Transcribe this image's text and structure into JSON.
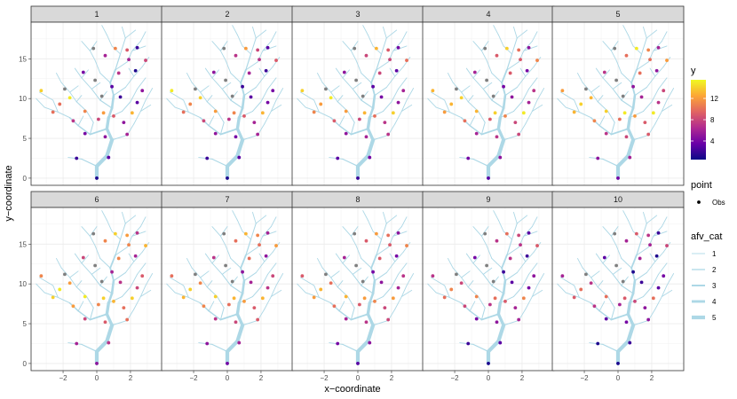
{
  "chart_data": {
    "type": "scatter",
    "description_note": "Faceted stream-network plot: 10 panels of the same branching river network with observation points colored by y.",
    "facets": [
      "1",
      "2",
      "3",
      "4",
      "5",
      "6",
      "7",
      "8",
      "9",
      "10"
    ],
    "xlabel": "x−coordinate",
    "ylabel": "y−coordinate",
    "xlim": [
      -3.9,
      3.9
    ],
    "ylim": [
      -0.9,
      19.6
    ],
    "x_ticks": [
      -2,
      0,
      2
    ],
    "x_tick_labels": [
      "−2",
      "0",
      "2"
    ],
    "y_ticks": [
      0,
      5,
      10,
      15
    ],
    "y_tick_labels": [
      "0",
      "5",
      "10",
      "15"
    ],
    "grid": true,
    "legend_position": "right",
    "color_legend": {
      "title": "y",
      "breaks": [
        4,
        8,
        12
      ],
      "break_labels": [
        "4",
        "8",
        "12"
      ],
      "range": [
        0.5,
        15.5
      ],
      "palette": [
        "#0d0887",
        "#6a00a8",
        "#b12a90",
        "#e16462",
        "#fca636",
        "#f0f921"
      ]
    },
    "point_legend": {
      "title": "point",
      "label": "Obs"
    },
    "line_legend": {
      "title": "afv_cat",
      "labels": [
        "1",
        "2",
        "3",
        "4",
        "5"
      ]
    },
    "network_color": "#add8e6",
    "na_point_color": "#7f7f7f",
    "points_xy": [
      [
        0,
        0
      ],
      [
        -1.2,
        2.5
      ],
      [
        0.7,
        2.6
      ],
      [
        -0.7,
        5.6
      ],
      [
        0.5,
        5.2
      ],
      [
        1.8,
        5.5
      ],
      [
        -1.4,
        7.2
      ],
      [
        0.1,
        7.4
      ],
      [
        1.0,
        7.8
      ],
      [
        -2.6,
        8.3
      ],
      [
        -0.7,
        8.4
      ],
      [
        0.4,
        8.2
      ],
      [
        2.1,
        8.2
      ],
      [
        -3.3,
        11.0
      ],
      [
        -1.6,
        10.1
      ],
      [
        0.3,
        10.3
      ],
      [
        1.4,
        10.2
      ],
      [
        2.7,
        11.0
      ],
      [
        -1.9,
        11.2
      ],
      [
        0.9,
        11.5
      ],
      [
        1.3,
        13.2
      ],
      [
        2.3,
        13.5
      ],
      [
        -0.8,
        13.3
      ],
      [
        0.5,
        15.4
      ],
      [
        1.8,
        16.1
      ],
      [
        1.1,
        16.3
      ],
      [
        2.4,
        16.4
      ],
      [
        -0.2,
        16.3
      ],
      [
        2.9,
        14.8
      ],
      [
        -2.2,
        9.3
      ],
      [
        2.4,
        9.5
      ],
      [
        1.9,
        14.9
      ],
      [
        -0.1,
        12.3
      ],
      [
        1.6,
        7.0
      ]
    ],
    "series": [
      {
        "name": "1",
        "values": [
          1,
          2,
          3,
          4,
          5,
          6,
          7,
          8,
          9,
          10,
          11,
          12,
          13,
          14,
          15,
          null,
          2,
          5,
          null,
          3,
          7,
          1,
          4,
          6,
          9,
          11,
          2,
          null,
          8,
          10,
          3,
          6,
          null,
          5
        ]
      },
      {
        "name": "2",
        "values": [
          1,
          2,
          3,
          5,
          4,
          6,
          8,
          7,
          9,
          10,
          12,
          11,
          13,
          15,
          14,
          null,
          3,
          4,
          null,
          2,
          6,
          2,
          5,
          7,
          8,
          12,
          3,
          null,
          9,
          11,
          4,
          7,
          null,
          6
        ]
      },
      {
        "name": "3",
        "values": [
          2,
          3,
          4,
          5,
          6,
          7,
          9,
          8,
          10,
          11,
          12,
          13,
          14,
          14,
          15,
          null,
          4,
          6,
          null,
          3,
          8,
          3,
          5,
          8,
          9,
          13,
          4,
          null,
          10,
          12,
          5,
          8,
          null,
          7
        ]
      },
      {
        "name": "4",
        "values": [
          3,
          4,
          5,
          6,
          7,
          8,
          10,
          9,
          11,
          12,
          13,
          14,
          15,
          13,
          14,
          null,
          5,
          7,
          null,
          4,
          9,
          4,
          6,
          9,
          10,
          14,
          5,
          null,
          11,
          13,
          6,
          9,
          null,
          8
        ]
      },
      {
        "name": "5",
        "values": [
          4,
          5,
          6,
          7,
          8,
          9,
          11,
          10,
          12,
          13,
          14,
          15,
          15,
          12,
          13,
          null,
          6,
          8,
          null,
          5,
          10,
          5,
          7,
          10,
          11,
          15,
          6,
          null,
          12,
          14,
          7,
          10,
          null,
          9
        ]
      },
      {
        "name": "6",
        "values": [
          5,
          6,
          7,
          8,
          9,
          10,
          12,
          11,
          13,
          14,
          15,
          14,
          14,
          11,
          12,
          null,
          7,
          9,
          null,
          6,
          11,
          6,
          8,
          11,
          12,
          14,
          7,
          null,
          13,
          15,
          8,
          11,
          null,
          10
        ]
      },
      {
        "name": "7",
        "values": [
          4,
          5,
          6,
          7,
          8,
          9,
          11,
          10,
          12,
          13,
          14,
          13,
          13,
          10,
          11,
          null,
          6,
          8,
          null,
          5,
          10,
          5,
          7,
          10,
          11,
          13,
          6,
          null,
          12,
          14,
          7,
          10,
          null,
          9
        ]
      },
      {
        "name": "8",
        "values": [
          3,
          4,
          5,
          6,
          7,
          8,
          10,
          9,
          11,
          12,
          13,
          12,
          12,
          9,
          10,
          null,
          5,
          7,
          null,
          4,
          9,
          4,
          6,
          9,
          10,
          12,
          5,
          null,
          11,
          13,
          6,
          9,
          null,
          8
        ]
      },
      {
        "name": "9",
        "values": [
          1,
          2,
          3,
          4,
          5,
          6,
          8,
          7,
          9,
          10,
          11,
          10,
          11,
          7,
          8,
          null,
          3,
          5,
          null,
          2,
          7,
          2,
          4,
          7,
          8,
          10,
          3,
          null,
          9,
          11,
          4,
          7,
          null,
          6
        ]
      },
      {
        "name": "10",
        "values": [
          1,
          1,
          2,
          3,
          4,
          5,
          7,
          6,
          8,
          9,
          10,
          9,
          10,
          6,
          7,
          null,
          2,
          4,
          null,
          1,
          6,
          1,
          3,
          6,
          7,
          9,
          2,
          null,
          8,
          10,
          3,
          6,
          null,
          5
        ]
      }
    ]
  }
}
